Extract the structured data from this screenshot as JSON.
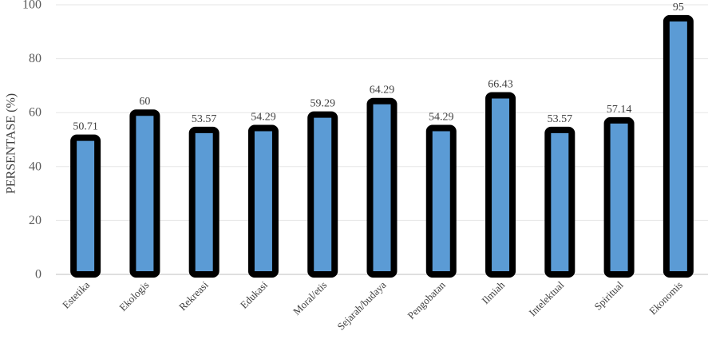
{
  "chart_data": {
    "type": "bar",
    "categories": [
      "Estetika",
      "Ekologis",
      "Rekreasi",
      "Edukasi",
      "Moral/etis",
      "Sejarah/budaya",
      "Pengobatan",
      "Ilmiah",
      "Intelektual",
      "Spiritual",
      "Ekonomis"
    ],
    "values": [
      50.71,
      60,
      53.57,
      54.29,
      59.29,
      64.29,
      54.29,
      66.43,
      53.57,
      57.14,
      95
    ],
    "data_labels": [
      "50.71",
      "60",
      "53.57",
      "54.29",
      "59.29",
      "64.29",
      "54.29",
      "66.43",
      "53.57",
      "57.14",
      "95"
    ],
    "ylabel": "PERSENTASE (%)",
    "ylim": [
      0,
      100
    ],
    "yticks": [
      0,
      20,
      40,
      60,
      80,
      100
    ],
    "grid": true,
    "legend": "none",
    "colors": {
      "bar_fill": "#5b9bd5",
      "bar_outline": "#000000",
      "gridline": "#e6e6e6",
      "axis": "#bfbfbf"
    }
  }
}
